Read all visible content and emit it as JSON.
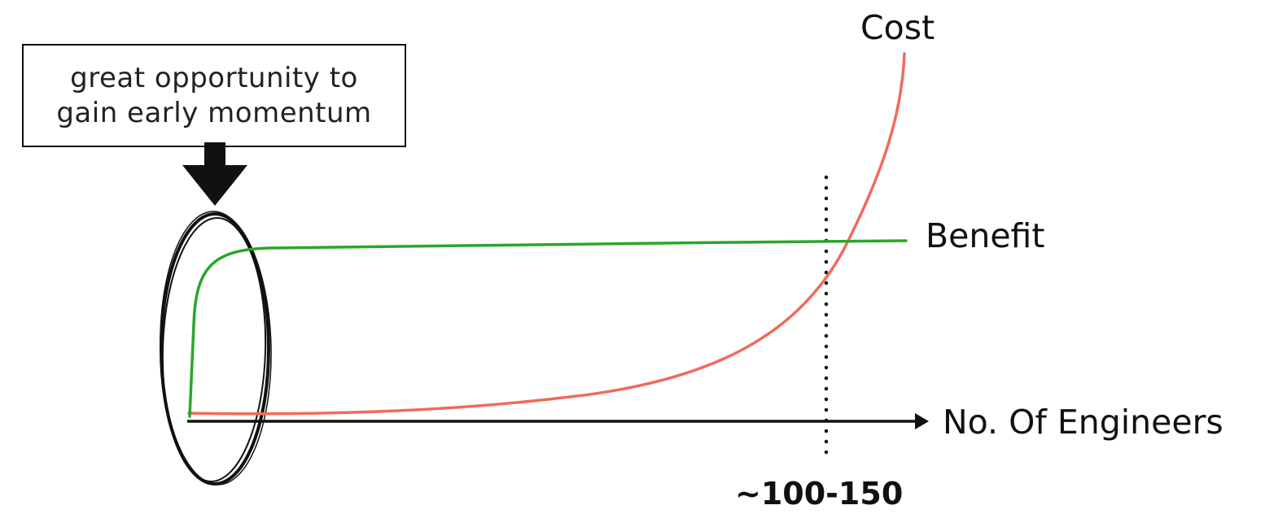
{
  "colors": {
    "cost": "#f06b5a",
    "benefit": "#2aa62a",
    "axis": "#111111",
    "annotation": "#111111"
  },
  "annotation": {
    "lines": [
      "great opportunity to",
      "gain early momentum"
    ],
    "marker": "down-arrow-icon",
    "highlight": "hand-drawn-ellipse"
  },
  "chart_data": {
    "type": "line",
    "title": "",
    "xlabel": "No. Of Engineers",
    "ylabel": "",
    "x_ticks": [],
    "y_ticks": [],
    "grid": false,
    "legend": "none",
    "reference_line": {
      "label": "~100-150",
      "style": "dotted vertical"
    },
    "series": [
      {
        "name": "Cost",
        "shape": "flat near zero, then rising exponentially past the reference line"
      },
      {
        "name": "Benefit",
        "shape": "rising sharply at the start, then plateauing"
      }
    ],
    "crossover": "Cost and Benefit intersect at ~100-150"
  }
}
